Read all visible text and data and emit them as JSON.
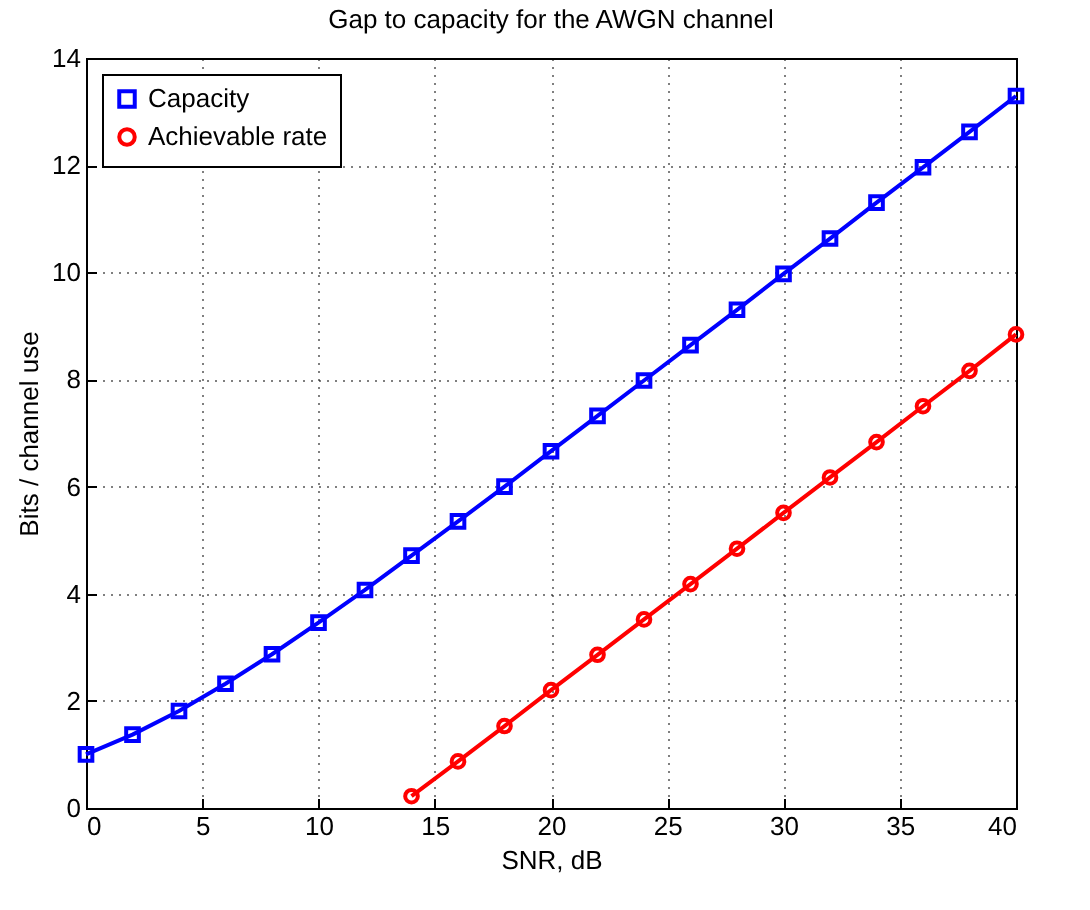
{
  "chart_data": {
    "type": "line",
    "title": "Gap to capacity for the AWGN channel",
    "xlabel": "SNR, dB",
    "ylabel": "Bits / channel use",
    "xlim": [
      0,
      40
    ],
    "xticks": [
      0,
      5,
      10,
      15,
      20,
      25,
      30,
      35,
      40
    ],
    "ylim": [
      0,
      14
    ],
    "yticks": [
      0,
      2,
      4,
      6,
      8,
      10,
      12,
      14
    ],
    "grid": true,
    "legend": "top left",
    "line_style": "solid",
    "series": [
      {
        "name": "Capacity",
        "color": "#0000ff",
        "marker": "square",
        "x": [
          0,
          2,
          4,
          6,
          8,
          10,
          12,
          14,
          16,
          18,
          20,
          22,
          24,
          26,
          28,
          30,
          32,
          34,
          36,
          38,
          40
        ],
        "values": [
          1.0,
          1.37,
          1.81,
          2.32,
          2.87,
          3.46,
          4.07,
          4.71,
          5.35,
          6.0,
          6.66,
          7.32,
          7.98,
          8.64,
          9.3,
          9.97,
          10.63,
          11.3,
          11.96,
          12.62,
          13.29
        ]
      },
      {
        "name": "Achievable rate",
        "color": "#ff0000",
        "marker": "circle",
        "x": [
          14,
          16,
          18,
          20,
          22,
          24,
          26,
          28,
          30,
          32,
          34,
          36,
          38,
          40
        ],
        "values": [
          0.22,
          0.87,
          1.53,
          2.2,
          2.86,
          3.52,
          4.18,
          4.84,
          5.51,
          6.17,
          6.83,
          7.5,
          8.16,
          8.84
        ]
      }
    ]
  }
}
